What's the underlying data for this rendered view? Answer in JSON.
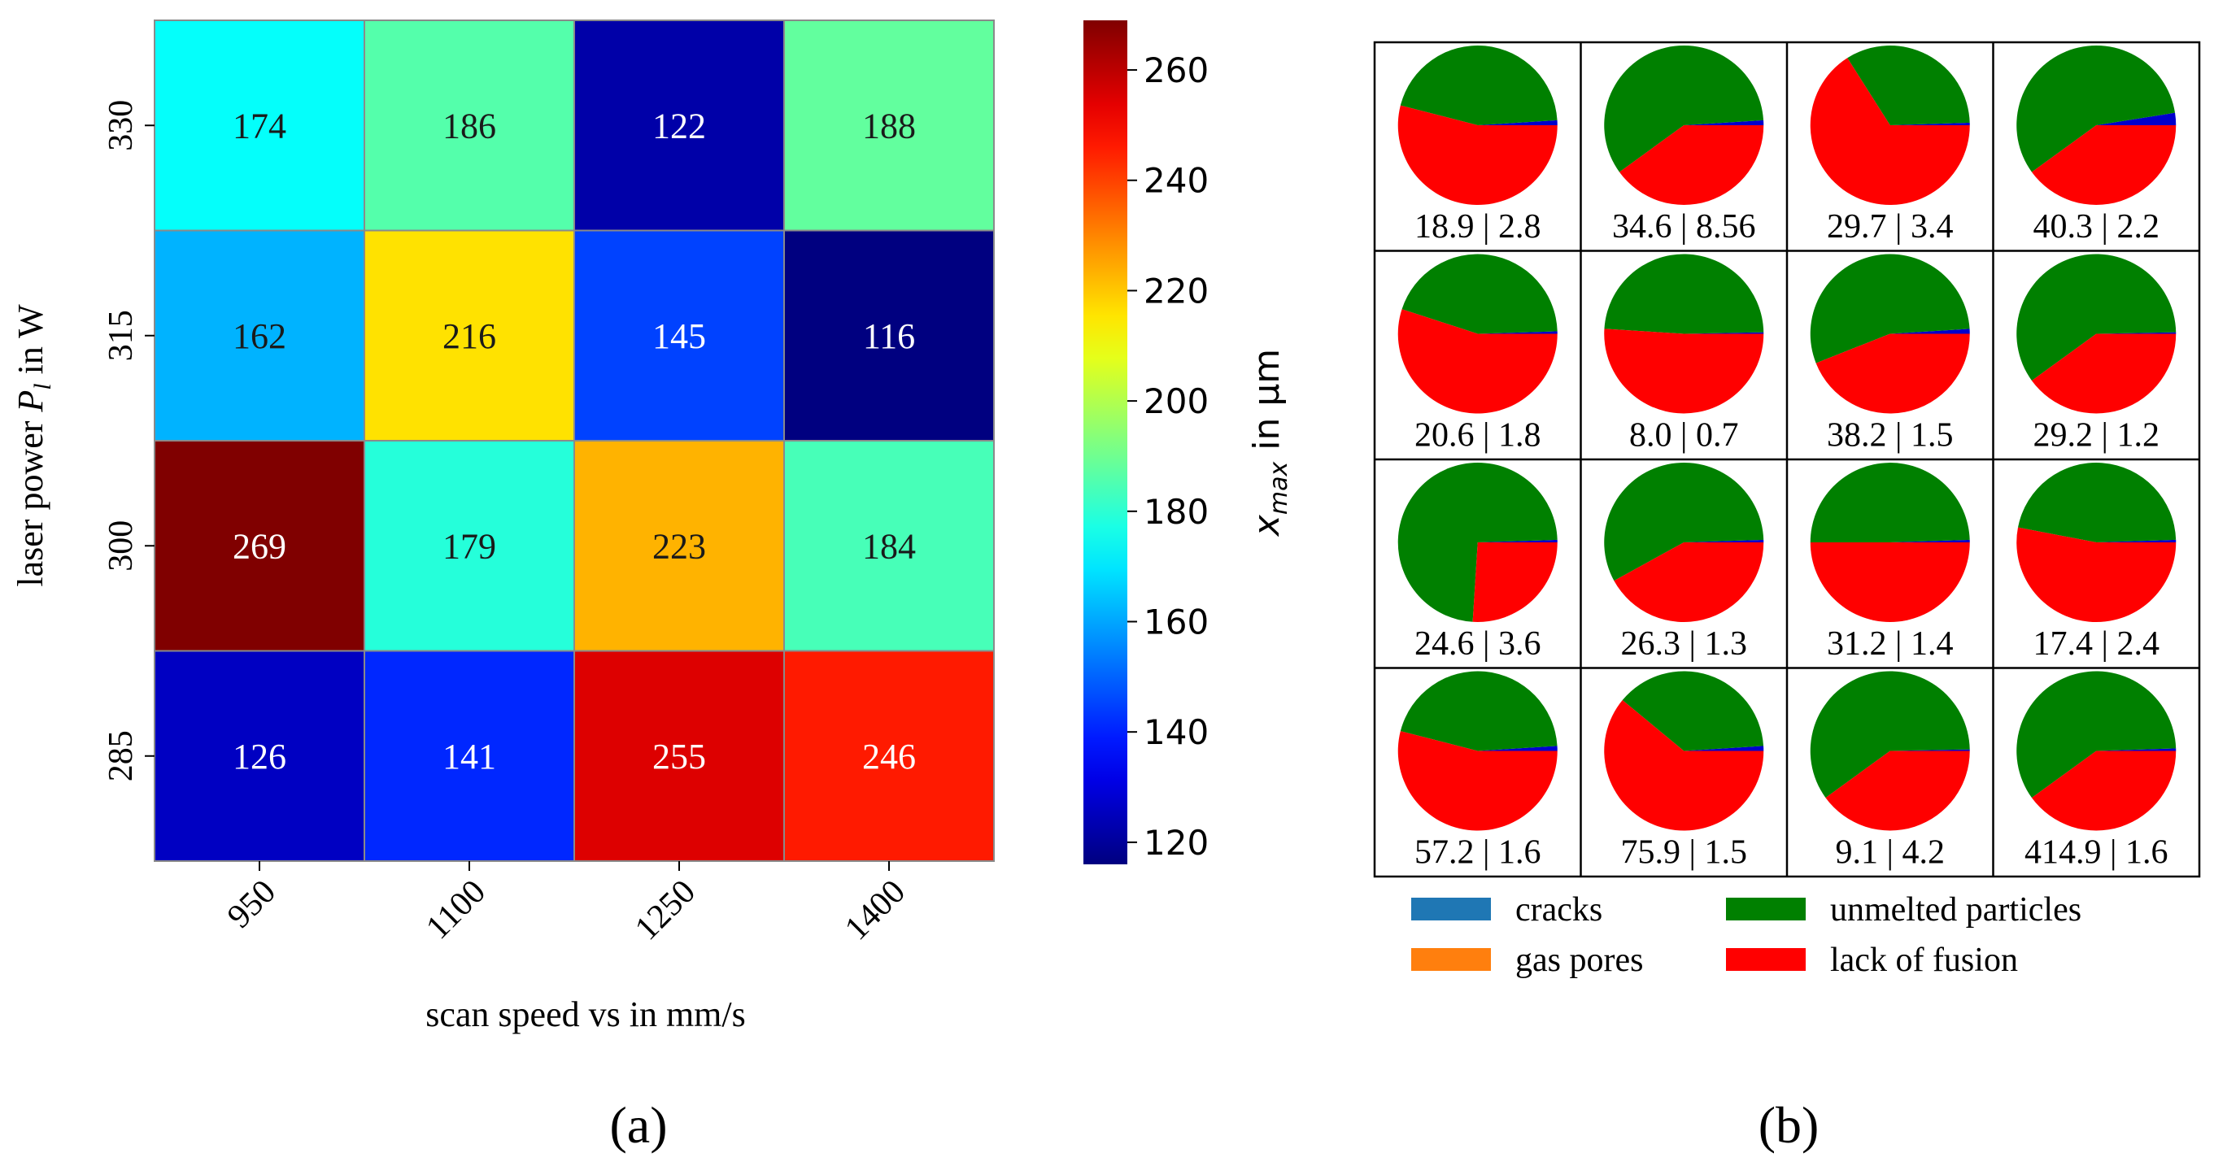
{
  "chart_data": [
    {
      "type": "heatmap",
      "panel_label": "(a)",
      "xlabel": "scan speed vs in mm/s",
      "ylabel": "laser power P_l in W",
      "ylabel_main": "laser power ",
      "ylabel_sym": "P",
      "ylabel_sub": "l",
      "ylabel_tail": " in W",
      "x_categories": [
        "950",
        "1100",
        "1250",
        "1400"
      ],
      "y_categories": [
        "330",
        "315",
        "300",
        "285"
      ],
      "values": [
        [
          174,
          186,
          122,
          188
        ],
        [
          162,
          216,
          145,
          116
        ],
        [
          269,
          179,
          223,
          184
        ],
        [
          126,
          141,
          255,
          246
        ]
      ],
      "colormap": "jet",
      "colorbar": {
        "range": [
          116,
          269
        ],
        "ticks": [
          120,
          140,
          160,
          180,
          200,
          220,
          240,
          260
        ],
        "label": "x_max in µm",
        "label_sym": "x",
        "label_sub": "max",
        "label_tail": " in µm"
      }
    },
    {
      "type": "pie",
      "panel_label": "(b)",
      "grid_rows": 4,
      "grid_cols": 4,
      "series_names": [
        "cracks",
        "gas pores",
        "unmelted particles",
        "lack of fusion"
      ],
      "colors": {
        "cracks": "#1f77b4",
        "gas pores": "#ff7f0e",
        "unmelted particles": "#008000",
        "lack of fusion": "#ff0000",
        "cracks_in_pie": "#0000cc"
      },
      "legend_placement": "bottom",
      "cells": [
        {
          "label": "18.9 | 2.8",
          "values": {
            "cracks": 1.0,
            "gas pores": 0,
            "unmelted particles": 45.0,
            "lack of fusion": 54.0
          }
        },
        {
          "label": "34.6 | 8.56",
          "values": {
            "cracks": 1.0,
            "gas pores": 0,
            "unmelted particles": 59.0,
            "lack of fusion": 40.0
          }
        },
        {
          "label": "29.7 | 3.4",
          "values": {
            "cracks": 0.5,
            "gas pores": 0,
            "unmelted particles": 33.5,
            "lack of fusion": 66.0
          }
        },
        {
          "label": "40.3 | 2.2",
          "values": {
            "cracks": 2.5,
            "gas pores": 0,
            "unmelted particles": 57.5,
            "lack of fusion": 40.0
          }
        },
        {
          "label": "20.6 | 1.8",
          "values": {
            "cracks": 0.5,
            "gas pores": 0,
            "unmelted particles": 44.5,
            "lack of fusion": 55.0
          }
        },
        {
          "label": "8.0 | 0.7",
          "values": {
            "cracks": 0.3,
            "gas pores": 0,
            "unmelted particles": 48.7,
            "lack of fusion": 51.0
          }
        },
        {
          "label": "38.2 | 1.5",
          "values": {
            "cracks": 1.0,
            "gas pores": 0,
            "unmelted particles": 55.0,
            "lack of fusion": 44.0
          }
        },
        {
          "label": "29.2 | 1.2",
          "values": {
            "cracks": 0.3,
            "gas pores": 0,
            "unmelted particles": 59.7,
            "lack of fusion": 40.0
          }
        },
        {
          "label": "24.6 | 3.6",
          "values": {
            "cracks": 0.5,
            "gas pores": 0,
            "unmelted particles": 73.5,
            "lack of fusion": 26.0
          }
        },
        {
          "label": "26.3 | 1.3",
          "values": {
            "cracks": 0.5,
            "gas pores": 0,
            "unmelted particles": 57.5,
            "lack of fusion": 42.0
          }
        },
        {
          "label": "31.2 | 1.4",
          "values": {
            "cracks": 0.5,
            "gas pores": 0,
            "unmelted particles": 49.5,
            "lack of fusion": 50.0
          }
        },
        {
          "label": "17.4 | 2.4",
          "values": {
            "cracks": 0.5,
            "gas pores": 0,
            "unmelted particles": 46.5,
            "lack of fusion": 53.0
          }
        },
        {
          "label": "57.2 | 1.6",
          "values": {
            "cracks": 1.0,
            "gas pores": 0,
            "unmelted particles": 45.0,
            "lack of fusion": 54.0
          }
        },
        {
          "label": "75.9 | 1.5",
          "values": {
            "cracks": 1.0,
            "gas pores": 0,
            "unmelted particles": 38.0,
            "lack of fusion": 61.0
          }
        },
        {
          "label": "9.1 | 4.2",
          "values": {
            "cracks": 0.3,
            "gas pores": 0,
            "unmelted particles": 59.7,
            "lack of fusion": 40.0
          }
        },
        {
          "label": "414.9 | 1.6",
          "values": {
            "cracks": 0.5,
            "gas pores": 0,
            "unmelted particles": 59.5,
            "lack of fusion": 40.0
          }
        }
      ]
    }
  ]
}
